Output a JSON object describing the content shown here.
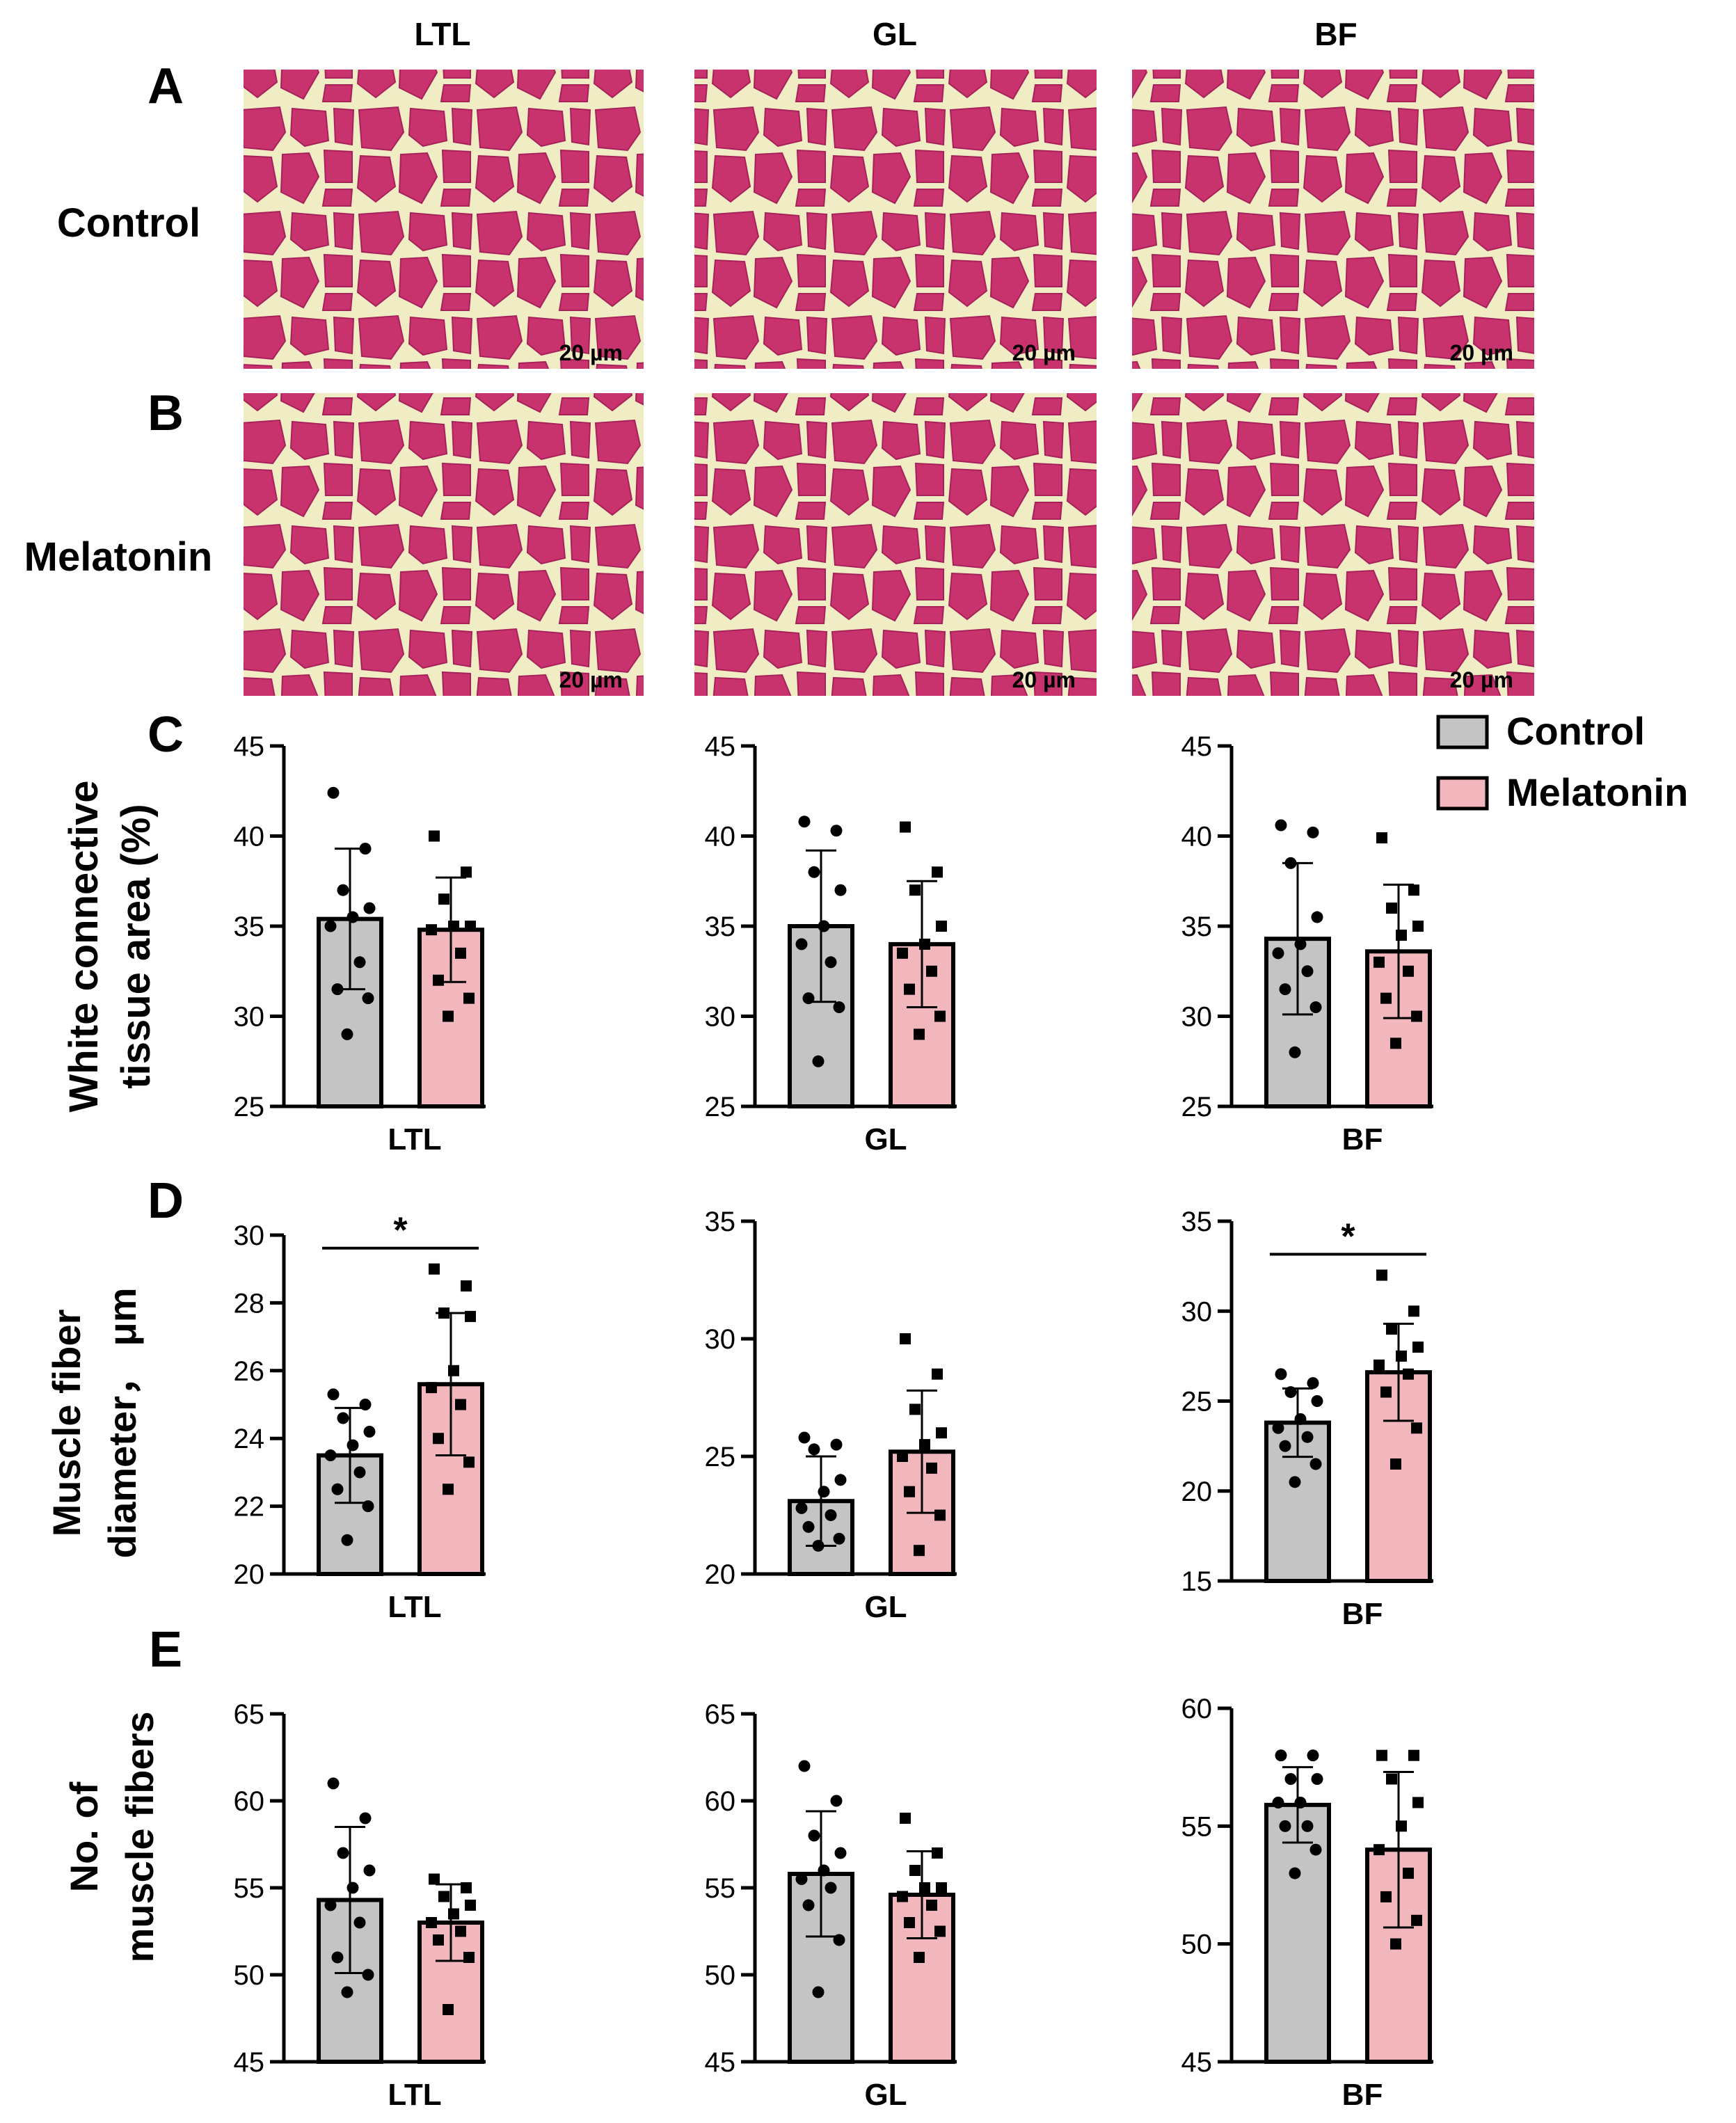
{
  "figure": {
    "column_headers": [
      "LTL",
      "GL",
      "BF"
    ],
    "panel_letters": [
      "A",
      "B",
      "C",
      "D",
      "E"
    ],
    "row_labels": {
      "a": "Control",
      "b": "Melatonin"
    },
    "scale_bar": "20 µm",
    "micrograph_colors": {
      "background": "#f0ecc4",
      "fiber": "#c8336e",
      "fiber_dark": "#a8205a"
    }
  },
  "legend": {
    "items": [
      {
        "label": "Control",
        "color": "#c4c4c4"
      },
      {
        "label": "Melatonin",
        "color": "#f2b7bd"
      }
    ]
  },
  "row_y_labels": {
    "C": [
      "White connective",
      "tissue area (%)"
    ],
    "D": [
      "Muscle fiber",
      "diameter， μm"
    ],
    "E": [
      "No. of",
      "muscle fibers"
    ]
  },
  "chart_data": [
    {
      "panel": "C",
      "type": "bar",
      "muscle": "LTL",
      "xlabel": "LTL",
      "ylabel": "White connective tissue area (%)",
      "ylim": [
        25,
        45
      ],
      "yticks": [
        25,
        30,
        35,
        40,
        45
      ],
      "series": [
        {
          "name": "Control",
          "mean": 35.4,
          "sd": 3.9,
          "points": [
            42.4,
            39.3,
            37.0,
            36.0,
            35.5,
            35.0,
            33.0,
            31.5,
            31.0,
            29.0
          ]
        },
        {
          "name": "Melatonin",
          "mean": 34.8,
          "sd": 2.9,
          "points": [
            40.0,
            38.0,
            36.5,
            35.0,
            35.0,
            34.8,
            33.5,
            32.0,
            31.0,
            30.0
          ]
        }
      ],
      "significance": ""
    },
    {
      "panel": "C",
      "type": "bar",
      "muscle": "GL",
      "xlabel": "GL",
      "ylabel": "White connective tissue area (%)",
      "ylim": [
        25,
        45
      ],
      "yticks": [
        25,
        30,
        35,
        40,
        45
      ],
      "series": [
        {
          "name": "Control",
          "mean": 35.0,
          "sd": 4.2,
          "points": [
            40.8,
            40.3,
            38.0,
            37.0,
            35.0,
            34.0,
            33.0,
            31.0,
            30.5,
            27.5
          ]
        },
        {
          "name": "Melatonin",
          "mean": 34.0,
          "sd": 3.5,
          "points": [
            40.5,
            38.0,
            37.0,
            35.0,
            34.0,
            33.5,
            32.5,
            31.5,
            30.0,
            29.0
          ]
        }
      ],
      "significance": ""
    },
    {
      "panel": "C",
      "type": "bar",
      "muscle": "BF",
      "xlabel": "BF",
      "ylabel": "White connective tissue area (%)",
      "ylim": [
        25,
        45
      ],
      "yticks": [
        25,
        30,
        35,
        40,
        45
      ],
      "series": [
        {
          "name": "Control",
          "mean": 34.3,
          "sd": 4.2,
          "points": [
            40.6,
            40.2,
            38.5,
            35.5,
            34.0,
            33.5,
            32.5,
            31.5,
            30.5,
            28.0
          ]
        },
        {
          "name": "Melatonin",
          "mean": 33.6,
          "sd": 3.7,
          "points": [
            39.9,
            37.0,
            36.0,
            35.0,
            34.5,
            33.0,
            32.5,
            31.0,
            30.0,
            28.5
          ]
        }
      ],
      "significance": ""
    },
    {
      "panel": "D",
      "type": "bar",
      "muscle": "LTL",
      "xlabel": "LTL",
      "ylabel": "Muscle fiber diameter， μm",
      "ylim": [
        20,
        30
      ],
      "yticks": [
        20,
        22,
        24,
        26,
        28,
        30
      ],
      "series": [
        {
          "name": "Control",
          "mean": 23.5,
          "sd": 1.4,
          "points": [
            25.3,
            25.0,
            24.6,
            24.2,
            23.8,
            23.5,
            23.0,
            22.5,
            22.0,
            21.0
          ]
        },
        {
          "name": "Melatonin",
          "mean": 25.6,
          "sd": 2.1,
          "points": [
            29.0,
            28.5,
            27.7,
            27.6,
            26.0,
            25.5,
            25.0,
            24.0,
            23.3,
            22.5
          ]
        }
      ],
      "significance": "*"
    },
    {
      "panel": "D",
      "type": "bar",
      "muscle": "GL",
      "xlabel": "GL",
      "ylabel": "Muscle fiber diameter， μm",
      "ylim": [
        20,
        35
      ],
      "yticks": [
        20,
        25,
        30,
        35
      ],
      "series": [
        {
          "name": "Control",
          "mean": 23.1,
          "sd": 1.9,
          "points": [
            25.8,
            25.5,
            25.3,
            24.0,
            23.5,
            22.8,
            22.5,
            22.0,
            21.5,
            21.2
          ]
        },
        {
          "name": "Melatonin",
          "mean": 25.2,
          "sd": 2.6,
          "points": [
            30.0,
            28.5,
            27.0,
            26.0,
            25.5,
            25.0,
            24.5,
            23.5,
            22.5,
            21.0
          ]
        }
      ],
      "significance": ""
    },
    {
      "panel": "D",
      "type": "bar",
      "muscle": "BF",
      "xlabel": "BF",
      "ylabel": "Muscle fiber diameter， μm",
      "ylim": [
        15,
        35
      ],
      "yticks": [
        15,
        20,
        25,
        30,
        35
      ],
      "series": [
        {
          "name": "Control",
          "mean": 23.8,
          "sd": 1.9,
          "points": [
            26.5,
            26.0,
            25.5,
            25.0,
            24.0,
            23.5,
            23.0,
            22.5,
            21.5,
            20.5
          ]
        },
        {
          "name": "Melatonin",
          "mean": 26.6,
          "sd": 2.7,
          "points": [
            32.0,
            30.0,
            29.0,
            28.0,
            27.5,
            27.0,
            26.5,
            25.5,
            23.5,
            21.5
          ]
        }
      ],
      "significance": "*"
    },
    {
      "panel": "E",
      "type": "bar",
      "muscle": "LTL",
      "xlabel": "LTL",
      "ylabel": "No. of muscle fibers",
      "ylim": [
        45,
        65
      ],
      "yticks": [
        45,
        50,
        55,
        60,
        65
      ],
      "series": [
        {
          "name": "Control",
          "mean": 54.3,
          "sd": 4.2,
          "points": [
            61.0,
            59.0,
            57.0,
            56.0,
            55.0,
            54.0,
            53.0,
            51.0,
            50.0,
            49.0
          ]
        },
        {
          "name": "Melatonin",
          "mean": 53.0,
          "sd": 2.2,
          "points": [
            55.5,
            55.0,
            54.5,
            54.0,
            53.5,
            53.0,
            52.5,
            52.0,
            51.0,
            48.0
          ]
        }
      ],
      "significance": ""
    },
    {
      "panel": "E",
      "type": "bar",
      "muscle": "GL",
      "xlabel": "GL",
      "ylabel": "No. of muscle fibers",
      "ylim": [
        45,
        65
      ],
      "yticks": [
        45,
        50,
        55,
        60,
        65
      ],
      "series": [
        {
          "name": "Control",
          "mean": 55.8,
          "sd": 3.6,
          "points": [
            62.0,
            60.0,
            58.0,
            57.0,
            56.0,
            55.5,
            55.0,
            54.0,
            52.0,
            49.0
          ]
        },
        {
          "name": "Melatonin",
          "mean": 54.6,
          "sd": 2.5,
          "points": [
            59.0,
            57.0,
            56.0,
            55.0,
            55.0,
            54.5,
            54.0,
            53.0,
            52.5,
            51.0
          ]
        }
      ],
      "significance": ""
    },
    {
      "panel": "E",
      "type": "bar",
      "muscle": "BF",
      "xlabel": "BF",
      "ylabel": "No. of muscle fibers",
      "ylim": [
        45,
        60
      ],
      "yticks": [
        45,
        50,
        55,
        60
      ],
      "series": [
        {
          "name": "Control",
          "mean": 55.9,
          "sd": 1.6,
          "points": [
            58.0,
            58.0,
            57.0,
            57.0,
            56.0,
            56.0,
            55.0,
            55.0,
            54.0,
            53.0
          ]
        },
        {
          "name": "Melatonin",
          "mean": 54.0,
          "sd": 3.3,
          "points": [
            58.0,
            58.0,
            57.0,
            56.0,
            55.0,
            54.0,
            53.0,
            52.0,
            51.0,
            50.0
          ]
        }
      ],
      "significance": ""
    }
  ]
}
